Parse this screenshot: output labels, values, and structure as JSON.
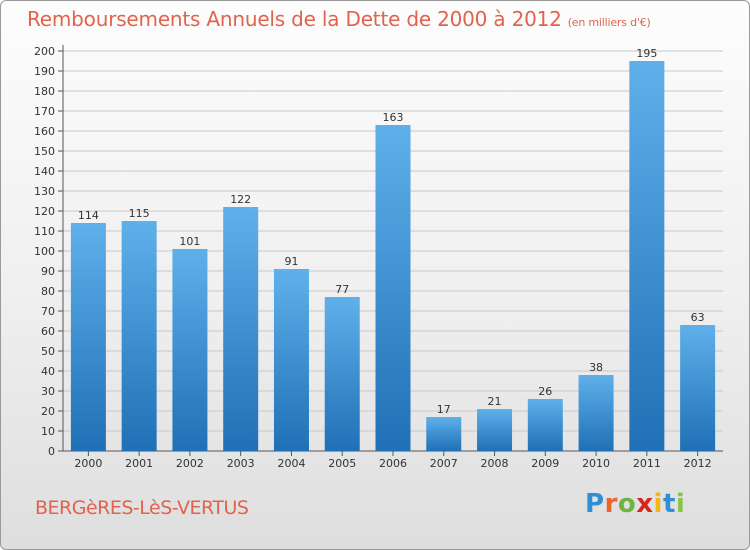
{
  "header": {
    "title": "Remboursements Annuels de la Dette de 2000 à 2012",
    "unit": "(en milliers d'€)"
  },
  "footer": {
    "commune": "BERGèRES-LèS-VERTUS",
    "logo_letters": [
      "P",
      "r",
      "o",
      "x",
      "i",
      "t",
      "i"
    ],
    "logo_colors": [
      "#2f8fd6",
      "#e8642a",
      "#6cb33f",
      "#d9261c",
      "#f3b617",
      "#2f8fd6",
      "#8bc34a"
    ]
  },
  "colors": {
    "title": "#e0634d",
    "bar_light": "#5aaae6",
    "bar_dark": "#1e6fb4",
    "grid": "#c8c8c8",
    "axis": "#555555"
  },
  "chart_data": {
    "type": "bar",
    "categories": [
      "2000",
      "2001",
      "2002",
      "2003",
      "2004",
      "2005",
      "2006",
      "2007",
      "2008",
      "2009",
      "2010",
      "2011",
      "2012"
    ],
    "values": [
      114,
      115,
      101,
      122,
      91,
      77,
      163,
      17,
      21,
      26,
      38,
      195,
      63
    ],
    "ylim": [
      0,
      200
    ],
    "ytick_step": 10,
    "grid": true,
    "data_labels": true
  }
}
